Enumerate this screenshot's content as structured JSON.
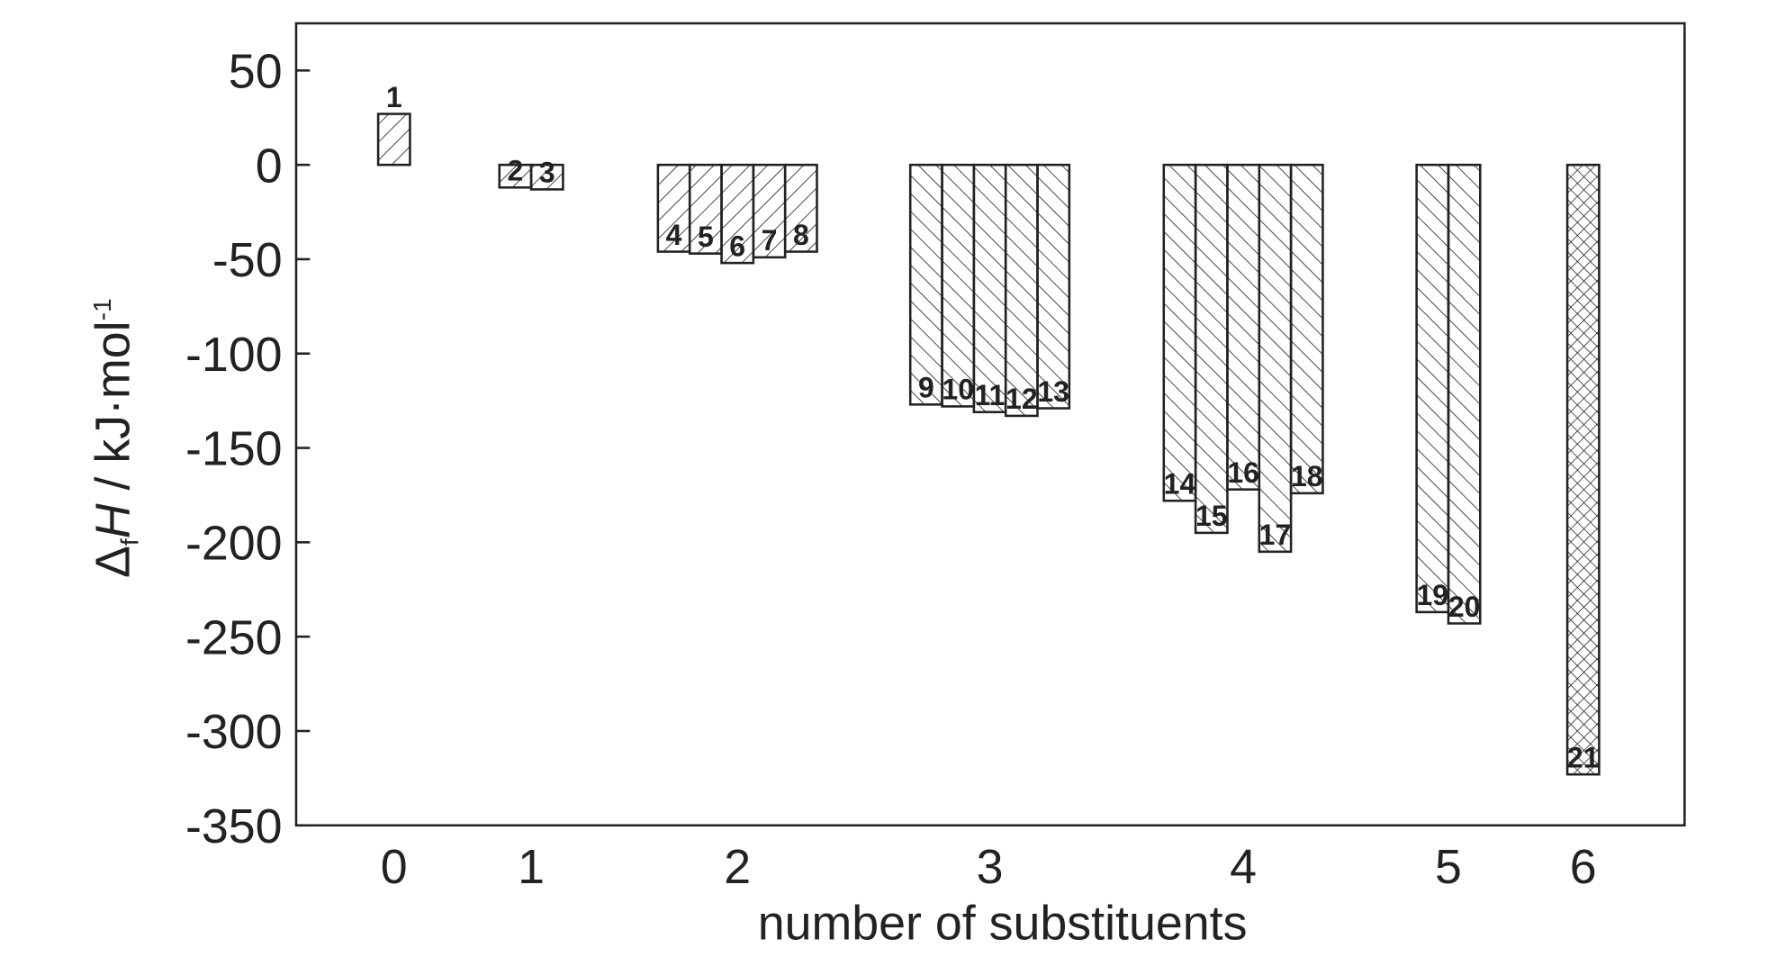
{
  "chart_data": {
    "type": "bar",
    "x_label": "number of substituents",
    "y_label": {
      "symbol": "Δ",
      "sub": "f",
      "var": "H",
      "unit": " / kJ·mol",
      "sup": "-1"
    },
    "ylim": [
      -350,
      75
    ],
    "yticks": [
      -350,
      -300,
      -250,
      -200,
      -150,
      -100,
      -50,
      0,
      50
    ],
    "groups": [
      {
        "name": "0",
        "hatch": "/",
        "labels": [
          "1"
        ],
        "values": [
          27
        ]
      },
      {
        "name": "1",
        "hatch": "/",
        "labels": [
          "2",
          "3"
        ],
        "values": [
          -12,
          -13
        ]
      },
      {
        "name": "2",
        "hatch": "/",
        "labels": [
          "4",
          "5",
          "6",
          "7",
          "8"
        ],
        "values": [
          -46,
          -47,
          -52,
          -49,
          -46
        ]
      },
      {
        "name": "3",
        "hatch": "\\",
        "labels": [
          "9",
          "10",
          "11",
          "12",
          "13"
        ],
        "values": [
          -127,
          -128,
          -131,
          -133,
          -129
        ]
      },
      {
        "name": "4",
        "hatch": "\\",
        "labels": [
          "14",
          "15",
          "16",
          "17",
          "18"
        ],
        "values": [
          -178,
          -195,
          -172,
          -205,
          -174
        ]
      },
      {
        "name": "5",
        "hatch": "\\",
        "labels": [
          "19",
          "20"
        ],
        "values": [
          -237,
          -243
        ]
      },
      {
        "name": "6",
        "hatch": "x",
        "labels": [
          "21"
        ],
        "values": [
          -323
        ]
      }
    ],
    "color": "#222222"
  }
}
